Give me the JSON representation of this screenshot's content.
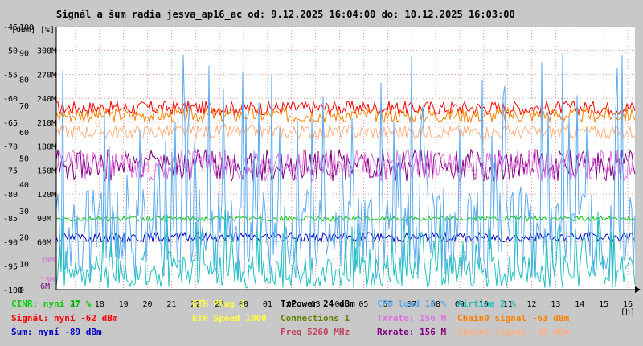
{
  "chart_data": {
    "type": "line",
    "title": "Signál a šum radia jesva_ap16_ac od: 9.12.2025 16:04:00 do: 10.12.2025 16:03:00",
    "y_unit_labels": [
      "[dBm]",
      "[%]"
    ],
    "x_unit": "[h]",
    "x_ticks": [
      "17",
      "18",
      "19",
      "20",
      "21",
      "22",
      "23",
      "00",
      "01",
      "02",
      "03",
      "04",
      "05",
      "06",
      "07",
      "08",
      "09",
      "10",
      "11",
      "12",
      "13",
      "14",
      "15",
      "16"
    ],
    "y_dbm_ticks": [
      "-45",
      "-50",
      "-55",
      "-60",
      "-65",
      "-70",
      "-75",
      "-80",
      "-85",
      "-90",
      "-95",
      "-100"
    ],
    "y_pct_ticks": [
      "100",
      "90",
      "80",
      "70",
      "60",
      "50",
      "40",
      "30",
      "20",
      "10",
      "0"
    ],
    "y_rate_ticks": [
      "300M",
      "270M",
      "240M",
      "210M",
      "180M",
      "150M",
      "120M",
      "90M",
      "60M"
    ],
    "y_extra_ticks": [
      {
        "text": "39M",
        "color": "#d070d0"
      },
      {
        "text": "13M",
        "color": "#d070d0"
      },
      {
        "text": "6M",
        "color": "#800080"
      }
    ],
    "ylim_dbm": [
      -100,
      -45
    ],
    "series": [
      {
        "name": "Signál",
        "color": "#ff0000",
        "unit": "dBm",
        "level": -62,
        "spread": 1.5
      },
      {
        "name": "Chain0 signal",
        "color": "#ff8000",
        "unit": "dBm",
        "level": -63.5,
        "spread": 1.5
      },
      {
        "name": "Chain1 signal",
        "color": "#ffb080",
        "unit": "dBm",
        "level": -67,
        "spread": 1.5
      },
      {
        "name": "Rxrate",
        "color": "#800080",
        "unit": "M",
        "level": 156,
        "spread": 20
      },
      {
        "name": "Txrate",
        "color": "#e070e0",
        "unit": "M",
        "level": 156,
        "spread": 20
      },
      {
        "name": "CINR",
        "color": "#00d000",
        "unit": "%",
        "level": 27,
        "spread": 1
      },
      {
        "name": "Šum",
        "color": "#0000c0",
        "unit": "dBm",
        "level": -89,
        "spread": 1
      },
      {
        "name": "CPU load",
        "color": "#5aaaf0",
        "unit": "%",
        "level": 12,
        "spread": 14
      },
      {
        "name": "Airtime",
        "color": "#20c0c0",
        "unit": "%",
        "level": 2,
        "spread": 5
      }
    ],
    "grid": true
  },
  "legend": [
    {
      "text": "CINR: nyní 27 %",
      "color": "#00d000",
      "col": 0,
      "row": 0
    },
    {
      "text": "Signál: nyní -62 dBm",
      "color": "#ff0000",
      "col": 0,
      "row": 1
    },
    {
      "text": "Šum: nyní -89 dBm",
      "color": "#0000c0",
      "col": 0,
      "row": 2
    },
    {
      "text": "ETH Plug 1",
      "color": "#ffff40",
      "col": 1,
      "row": 0
    },
    {
      "text": "ETH Speed 1000",
      "color": "#ffff40",
      "col": 1,
      "row": 1
    },
    {
      "text": "TxPower 24 dBm",
      "color": "#000000",
      "col": 2,
      "row": 0
    },
    {
      "text": "Connections 1",
      "color": "#608000",
      "col": 2,
      "row": 1
    },
    {
      "text": "Freq 5260 MHz",
      "color": "#c04060",
      "col": 2,
      "row": 2
    },
    {
      "text": "CPU load 12 %",
      "color": "#5aaaf0",
      "col": 3,
      "row": 0
    },
    {
      "text": "Txrate: 156 M",
      "color": "#e070e0",
      "col": 3,
      "row": 1
    },
    {
      "text": "Rxrate: 156 M",
      "color": "#800080",
      "col": 3,
      "row": 2
    },
    {
      "text": "Airtime 2 %",
      "color": "#20c0c0",
      "col": 4,
      "row": 0
    },
    {
      "text": "Chain0 signal -63 dBm",
      "color": "#ff8000",
      "col": 4,
      "row": 1
    },
    {
      "text": "Chain1 signal -68 dBm",
      "color": "#ffb080",
      "col": 4,
      "row": 2
    }
  ]
}
